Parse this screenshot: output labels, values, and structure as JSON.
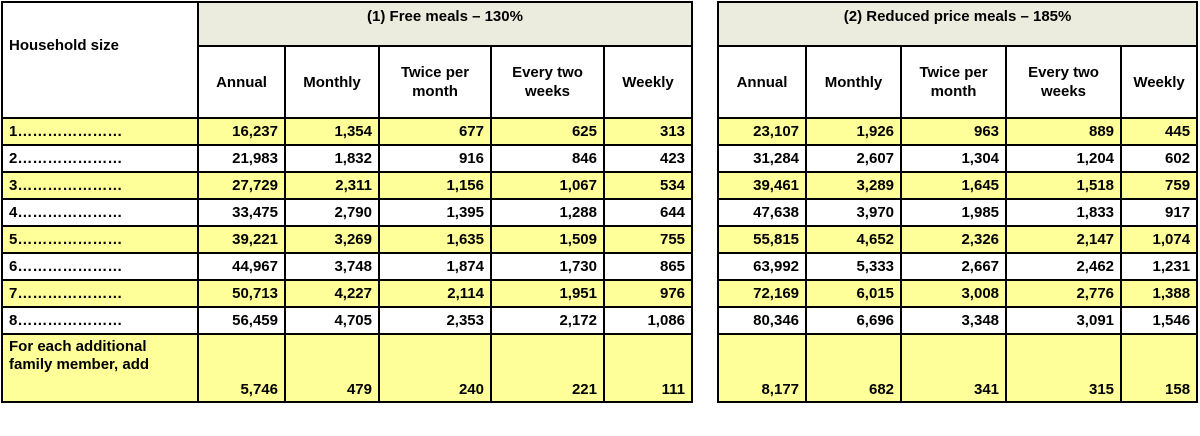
{
  "table": {
    "household_header": "Household size",
    "group1_title": "(1)  Free meals – 130%",
    "group2_title": "(2) Reduced price meals – 185%",
    "columns": [
      "Annual",
      "Monthly",
      "Twice per month",
      "Every two weeks",
      "Weekly"
    ],
    "rows": [
      {
        "label": "1…………………",
        "free": [
          "16,237",
          "1,354",
          "677",
          "625",
          "313"
        ],
        "reduced": [
          "23,107",
          "1,926",
          "963",
          "889",
          "445"
        ]
      },
      {
        "label": "2…………………",
        "free": [
          "21,983",
          "1,832",
          "916",
          "846",
          "423"
        ],
        "reduced": [
          "31,284",
          "2,607",
          "1,304",
          "1,204",
          "602"
        ]
      },
      {
        "label": "3…………………",
        "free": [
          "27,729",
          "2,311",
          "1,156",
          "1,067",
          "534"
        ],
        "reduced": [
          "39,461",
          "3,289",
          "1,645",
          "1,518",
          "759"
        ]
      },
      {
        "label": "4…………………",
        "free": [
          "33,475",
          "2,790",
          "1,395",
          "1,288",
          "644"
        ],
        "reduced": [
          "47,638",
          "3,970",
          "1,985",
          "1,833",
          "917"
        ]
      },
      {
        "label": "5…………………",
        "free": [
          "39,221",
          "3,269",
          "1,635",
          "1,509",
          "755"
        ],
        "reduced": [
          "55,815",
          "4,652",
          "2,326",
          "2,147",
          "1,074"
        ]
      },
      {
        "label": "6…………………",
        "free": [
          "44,967",
          "3,748",
          "1,874",
          "1,730",
          "865"
        ],
        "reduced": [
          "63,992",
          "5,333",
          "2,667",
          "2,462",
          "1,231"
        ]
      },
      {
        "label": "7…………………",
        "free": [
          "50,713",
          "4,227",
          "2,114",
          "1,951",
          "976"
        ],
        "reduced": [
          "72,169",
          "6,015",
          "3,008",
          "2,776",
          "1,388"
        ]
      },
      {
        "label": "8…………………",
        "free": [
          "56,459",
          "4,705",
          "2,353",
          "2,172",
          "1,086"
        ],
        "reduced": [
          "80,346",
          "6,696",
          "3,348",
          "3,091",
          "1,546"
        ]
      }
    ],
    "additional": {
      "label": "For each additional family member, add",
      "free": [
        "5,746",
        "479",
        "240",
        "221",
        "111"
      ],
      "reduced": [
        "8,177",
        "682",
        "341",
        "315",
        "158"
      ]
    }
  }
}
